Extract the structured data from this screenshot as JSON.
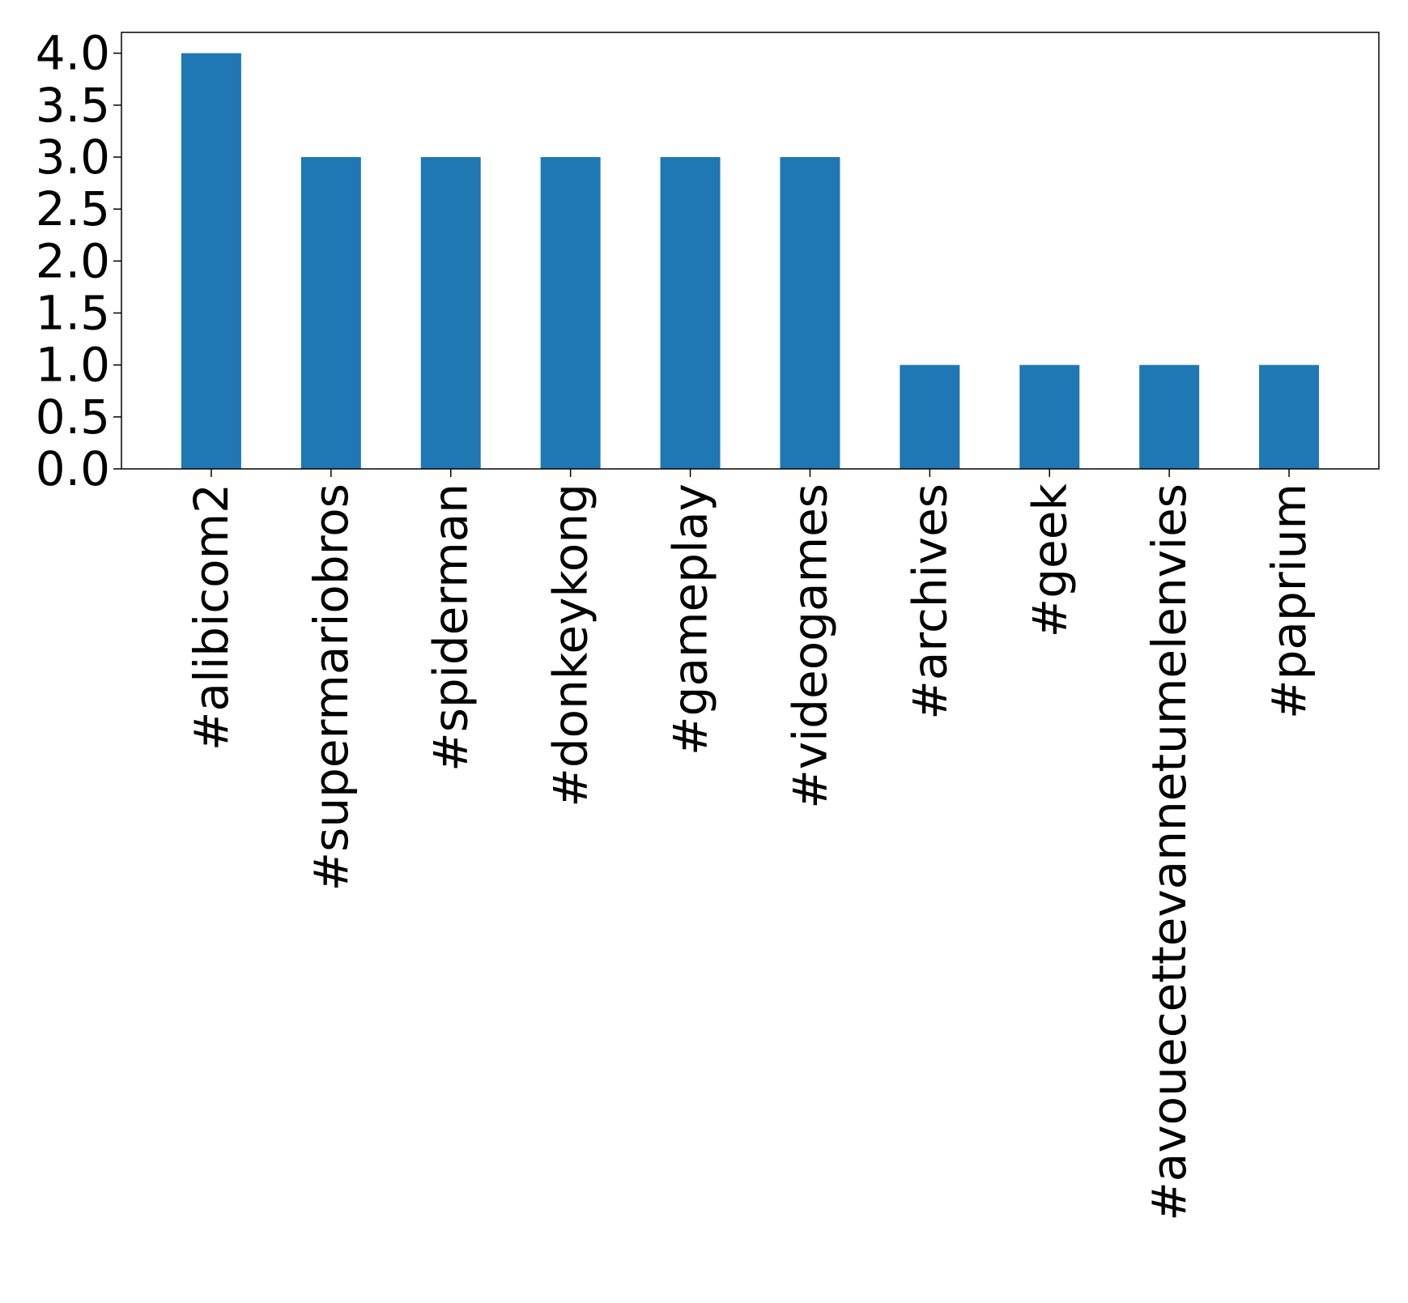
{
  "chart_data": {
    "type": "bar",
    "categories": [
      "#alibicom2",
      "#supermariobros",
      "#spiderman",
      "#donkeykong",
      "#gameplay",
      "#videogames",
      "#archives",
      "#geek",
      "#avouecettevannetumelenvies",
      "#paprium"
    ],
    "values": [
      4,
      3,
      3,
      3,
      3,
      3,
      1,
      1,
      1,
      1
    ],
    "title": "",
    "xlabel": "",
    "ylabel": "",
    "ylim": [
      0,
      4.2
    ],
    "yticks": [
      "0.0",
      "0.5",
      "1.0",
      "1.5",
      "2.0",
      "2.5",
      "3.0",
      "3.5",
      "4.0"
    ],
    "grid": false,
    "legend": "none",
    "colors": {
      "bar": "#1f77b4",
      "axis": "#000000",
      "background": "#ffffff"
    }
  }
}
